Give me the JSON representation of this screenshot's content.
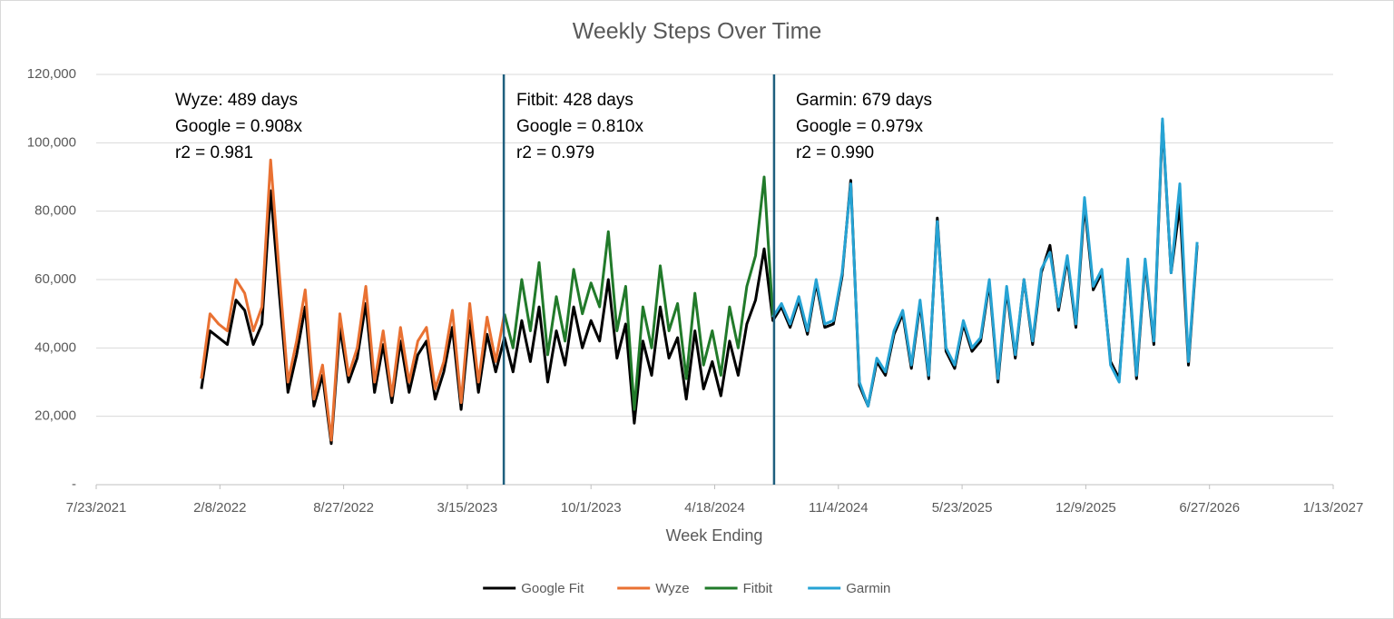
{
  "chart_data": {
    "type": "line",
    "title": "Weekly Steps Over Time",
    "x_label": "Week Ending",
    "xlim": [
      "7/23/2021",
      "1/13/2027"
    ],
    "xticks": [
      "7/23/2021",
      "2/8/2022",
      "8/27/2022",
      "3/15/2023",
      "10/1/2023",
      "4/18/2024",
      "11/4/2024",
      "5/23/2025",
      "12/9/2025",
      "6/27/2026",
      "1/13/2027"
    ],
    "ylim": [
      0,
      120000
    ],
    "yticks": [
      {
        "value": 0,
        "label": "-"
      },
      {
        "value": 20000,
        "label": "20,000"
      },
      {
        "value": 40000,
        "label": "40,000"
      },
      {
        "value": 60000,
        "label": "60,000"
      },
      {
        "value": 80000,
        "label": "80,000"
      },
      {
        "value": 100000,
        "label": "100,000"
      },
      {
        "value": 120000,
        "label": "120,000"
      }
    ],
    "grid": true,
    "legend": "bottom",
    "dividers": [
      "5/13/2023",
      "7/23/2024"
    ],
    "divider_color": "#1f5f7e",
    "annotations": [
      [
        "Wyze: 489 days",
        "Google = 0.908x",
        "r2 = 0.981"
      ],
      [
        "Fitbit: 428 days",
        "Google = 0.810x",
        "r2 = 0.979"
      ],
      [
        "Garmin: 679 days",
        "Google = 0.979x",
        "r2 = 0.990"
      ]
    ],
    "x": [
      "1/9/2022",
      "1/23/2022",
      "2/6/2022",
      "2/20/2022",
      "3/6/2022",
      "3/20/2022",
      "4/3/2022",
      "4/17/2022",
      "5/1/2022",
      "5/15/2022",
      "5/29/2022",
      "6/12/2022",
      "6/26/2022",
      "7/10/2022",
      "7/24/2022",
      "8/7/2022",
      "8/21/2022",
      "9/4/2022",
      "9/18/2022",
      "10/2/2022",
      "10/16/2022",
      "10/30/2022",
      "11/13/2022",
      "11/27/2022",
      "12/11/2022",
      "12/25/2022",
      "1/8/2023",
      "1/22/2023",
      "2/5/2023",
      "2/19/2023",
      "3/5/2023",
      "3/19/2023",
      "4/2/2023",
      "4/16/2023",
      "4/30/2023",
      "5/14/2023",
      "5/28/2023",
      "6/11/2023",
      "6/25/2023",
      "7/9/2023",
      "7/23/2023",
      "8/6/2023",
      "8/20/2023",
      "9/3/2023",
      "9/17/2023",
      "10/1/2023",
      "10/15/2023",
      "10/29/2023",
      "11/12/2023",
      "11/26/2023",
      "12/10/2023",
      "12/24/2023",
      "1/7/2024",
      "1/21/2024",
      "2/4/2024",
      "2/18/2024",
      "3/3/2024",
      "3/17/2024",
      "3/31/2024",
      "4/14/2024",
      "4/28/2024",
      "5/12/2024",
      "5/26/2024",
      "6/9/2024",
      "6/23/2024",
      "7/7/2024",
      "7/21/2024",
      "8/4/2024",
      "8/18/2024",
      "9/1/2024",
      "9/15/2024",
      "9/29/2024",
      "10/13/2024",
      "10/27/2024",
      "11/10/2024",
      "11/24/2024",
      "12/8/2024",
      "12/22/2024",
      "1/5/2025",
      "1/19/2025",
      "2/2/2025",
      "2/16/2025",
      "3/2/2025",
      "3/16/2025",
      "3/30/2025",
      "4/13/2025",
      "4/27/2025",
      "5/11/2025",
      "5/25/2025",
      "6/8/2025",
      "6/22/2025",
      "7/6/2025",
      "7/20/2025",
      "8/3/2025",
      "8/17/2025",
      "8/31/2025",
      "9/14/2025",
      "9/28/2025",
      "10/12/2025",
      "10/26/2025",
      "11/9/2025",
      "11/23/2025",
      "12/7/2025",
      "12/21/2025",
      "1/4/2026",
      "1/18/2026",
      "2/1/2026",
      "2/15/2026",
      "3/1/2026",
      "3/15/2026",
      "3/29/2026",
      "4/12/2026",
      "4/26/2026",
      "5/10/2026",
      "5/24/2026",
      "6/7/2026"
    ],
    "series": [
      {
        "name": "Google Fit",
        "color": "#000000",
        "values": [
          28000,
          45000,
          43000,
          41000,
          54000,
          51000,
          41000,
          47000,
          86000,
          56000,
          27000,
          38000,
          52000,
          23000,
          32000,
          12000,
          46000,
          30000,
          37000,
          53000,
          27000,
          41000,
          24000,
          42000,
          27000,
          38000,
          42000,
          25000,
          33000,
          46000,
          22000,
          48000,
          27000,
          44000,
          33000,
          43000,
          33000,
          48000,
          36000,
          52000,
          30000,
          45000,
          35000,
          52000,
          40000,
          48000,
          42000,
          60000,
          37000,
          47000,
          18000,
          42000,
          32000,
          52000,
          37000,
          43000,
          25000,
          45000,
          28000,
          36000,
          26000,
          42000,
          32000,
          47000,
          54000,
          69000,
          48000,
          52000,
          46000,
          54000,
          44000,
          59000,
          46000,
          47000,
          61000,
          89000,
          29000,
          23000,
          36000,
          32000,
          44000,
          50000,
          34000,
          53000,
          31000,
          78000,
          39000,
          34000,
          47000,
          39000,
          42000,
          59000,
          30000,
          57000,
          37000,
          60000,
          41000,
          62000,
          70000,
          51000,
          66000,
          46000,
          82000,
          57000,
          62000,
          36000,
          31000,
          65000,
          31000,
          65000,
          41000,
          106000,
          62000,
          82000,
          35000,
          70000
        ]
      },
      {
        "name": "Wyze",
        "color": "#e97132",
        "values": [
          31000,
          50000,
          47000,
          45000,
          60000,
          56000,
          45000,
          52000,
          95000,
          62000,
          30000,
          42000,
          57000,
          25000,
          35000,
          13000,
          50000,
          32000,
          40000,
          58000,
          30000,
          45000,
          26000,
          46000,
          30000,
          42000,
          46000,
          28000,
          36000,
          51000,
          24000,
          53000,
          30000,
          49000,
          36000,
          50000,
          null,
          null,
          null,
          null,
          null,
          null,
          null,
          null,
          null,
          null,
          null,
          null,
          null,
          null,
          null,
          null,
          null,
          null,
          null,
          null,
          null,
          null,
          null,
          null,
          null,
          null,
          null,
          null,
          null,
          null,
          null,
          null,
          null,
          null,
          null,
          null,
          null,
          null,
          null,
          null,
          null,
          null,
          null,
          null,
          null,
          null,
          null,
          null,
          null,
          null,
          null,
          null,
          null,
          null,
          null,
          null,
          null,
          null,
          null,
          null,
          null,
          null,
          null,
          null,
          null,
          null,
          null,
          null,
          null,
          null,
          null,
          null,
          null,
          null,
          null,
          null,
          null,
          null,
          null,
          null
        ]
      },
      {
        "name": "Fitbit",
        "color": "#217a2a",
        "values": [
          null,
          null,
          null,
          null,
          null,
          null,
          null,
          null,
          null,
          null,
          null,
          null,
          null,
          null,
          null,
          null,
          null,
          null,
          null,
          null,
          null,
          null,
          null,
          null,
          null,
          null,
          null,
          null,
          null,
          null,
          null,
          null,
          null,
          null,
          null,
          50000,
          40000,
          60000,
          45000,
          65000,
          38000,
          55000,
          42000,
          63000,
          50000,
          59000,
          52000,
          74000,
          45000,
          58000,
          22000,
          52000,
          40000,
          64000,
          45000,
          53000,
          31000,
          56000,
          35000,
          45000,
          32000,
          52000,
          40000,
          58000,
          67000,
          90000,
          49000,
          null,
          null,
          null,
          null,
          null,
          null,
          null,
          null,
          null,
          null,
          null,
          null,
          null,
          null,
          null,
          null,
          null,
          null,
          null,
          null,
          null,
          null,
          null,
          null,
          null,
          null,
          null,
          null,
          null,
          null,
          null,
          null,
          null,
          null,
          null,
          null,
          null,
          null,
          null,
          null,
          null,
          null,
          null,
          null,
          null,
          null,
          null,
          null,
          null
        ]
      },
      {
        "name": "Garmin",
        "color": "#26a3d4",
        "values": [
          null,
          null,
          null,
          null,
          null,
          null,
          null,
          null,
          null,
          null,
          null,
          null,
          null,
          null,
          null,
          null,
          null,
          null,
          null,
          null,
          null,
          null,
          null,
          null,
          null,
          null,
          null,
          null,
          null,
          null,
          null,
          null,
          null,
          null,
          null,
          null,
          null,
          null,
          null,
          null,
          null,
          null,
          null,
          null,
          null,
          null,
          null,
          null,
          null,
          null,
          null,
          null,
          null,
          null,
          null,
          null,
          null,
          null,
          null,
          null,
          null,
          null,
          null,
          null,
          null,
          null,
          49000,
          53000,
          47000,
          55000,
          45000,
          60000,
          47000,
          48000,
          62000,
          88000,
          30000,
          23000,
          37000,
          33000,
          45000,
          51000,
          35000,
          54000,
          32000,
          77000,
          40000,
          35000,
          48000,
          40000,
          43000,
          60000,
          31000,
          58000,
          38000,
          60000,
          42000,
          63000,
          68000,
          52000,
          67000,
          47000,
          84000,
          58000,
          63000,
          35000,
          30000,
          66000,
          32000,
          66000,
          42000,
          107000,
          62000,
          88000,
          36000,
          71000
        ]
      }
    ]
  }
}
